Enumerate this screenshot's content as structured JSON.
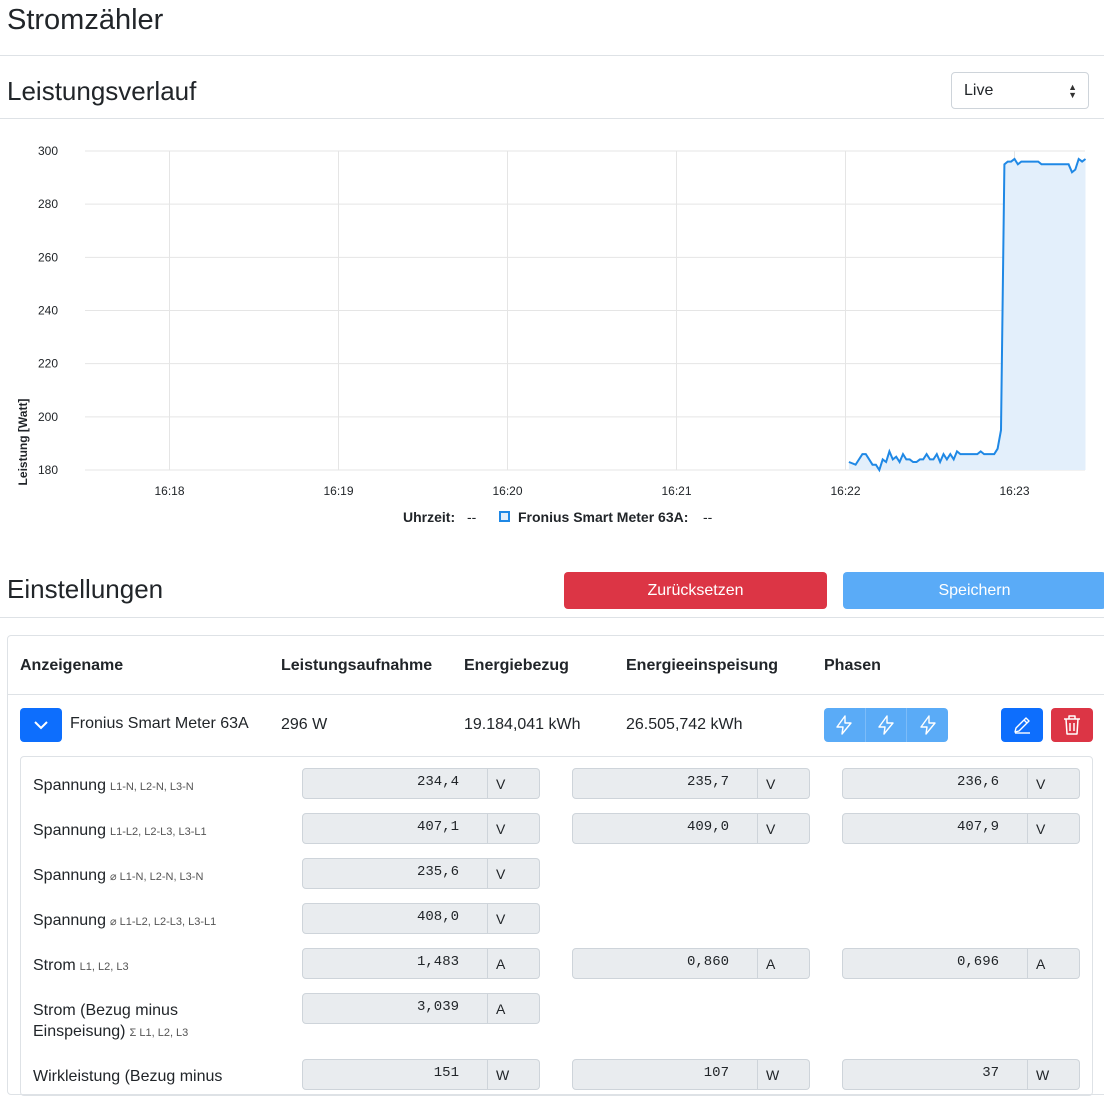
{
  "page": {
    "title": "Stromzähler"
  },
  "chart_section": {
    "title": "Leistungsverlauf",
    "range_select": "Live"
  },
  "chart_data": {
    "type": "area",
    "ylabel": "Leistung [Watt]",
    "ylim": [
      180,
      300
    ],
    "yticks": [
      "180",
      "200",
      "220",
      "240",
      "260",
      "280",
      "300"
    ],
    "xticks": [
      "16:18",
      "16:19",
      "16:20",
      "16:21",
      "16:22",
      "16:23"
    ],
    "grid": true,
    "color": "#1f88e5",
    "series": [
      {
        "name": "Fronius Smart Meter 63A",
        "x_minutes": [
          22.02,
          22.06,
          22.1,
          22.12,
          22.14,
          22.16,
          22.18,
          22.2,
          22.22,
          22.24,
          22.26,
          22.28,
          22.3,
          22.32,
          22.34,
          22.36,
          22.38,
          22.4,
          22.42,
          22.44,
          22.46,
          22.48,
          22.5,
          22.52,
          22.54,
          22.56,
          22.58,
          22.6,
          22.62,
          22.64,
          22.66,
          22.68,
          22.7,
          22.72,
          22.74,
          22.76,
          22.78,
          22.8,
          22.82,
          22.84,
          22.86,
          22.88,
          22.9,
          22.92,
          22.94,
          22.96,
          22.98,
          23.0,
          23.02,
          23.04,
          23.06,
          23.08,
          23.1,
          23.12,
          23.14,
          23.16,
          23.18,
          23.2,
          23.22,
          23.24,
          23.26,
          23.28,
          23.3,
          23.32,
          23.34,
          23.36,
          23.38,
          23.4,
          23.42
        ],
        "values": [
          183,
          182,
          186,
          186,
          184,
          182,
          182,
          180,
          184,
          183,
          187,
          184,
          185,
          183,
          186,
          184,
          184,
          183,
          183,
          184,
          184,
          186,
          184,
          184,
          186,
          183,
          186,
          184,
          186,
          184,
          187,
          186,
          186,
          186,
          186,
          186,
          186,
          187,
          186,
          186,
          186,
          186,
          188,
          195,
          295,
          296,
          296,
          297,
          295,
          296,
          296,
          296,
          296,
          296,
          296,
          295,
          295,
          295,
          295,
          295,
          295,
          295,
          295,
          295,
          292,
          293,
          297,
          296,
          297
        ]
      }
    ]
  },
  "legend": {
    "time_label": "Uhrzeit:",
    "time_value": "--",
    "series_label": "Fronius Smart Meter 63A:",
    "series_value": "--"
  },
  "settings": {
    "title": "Einstellungen",
    "reset_label": "Zurücksetzen",
    "save_label": "Speichern",
    "columns": [
      "Anzeigename",
      "Leistungsaufnahme",
      "Energiebezug",
      "Energieeinspeisung",
      "Phasen"
    ],
    "meter": {
      "name": "Fronius Smart Meter 63A",
      "power": "296 W",
      "energy_in": "19.184,041 kWh",
      "energy_out": "26.505,742 kWh"
    },
    "rows": [
      {
        "label": "Spannung",
        "sub": "L1-N, L2-N, L3-N",
        "values": [
          "234,4",
          "235,7",
          "236,6"
        ],
        "unit": "V"
      },
      {
        "label": "Spannung",
        "sub": "L1-L2, L2-L3, L3-L1",
        "values": [
          "407,1",
          "409,0",
          "407,9"
        ],
        "unit": "V"
      },
      {
        "label": "Spannung",
        "sub": "⌀ L1-N, L2-N, L3-N",
        "values": [
          "235,6"
        ],
        "unit": "V"
      },
      {
        "label": "Spannung",
        "sub": "⌀ L1-L2, L2-L3, L3-L1",
        "values": [
          "408,0"
        ],
        "unit": "V"
      },
      {
        "label": "Strom",
        "sub": "L1, L2, L3",
        "values": [
          "1,483",
          "0,860",
          "0,696"
        ],
        "unit": "A"
      },
      {
        "label": "Strom (Bezug minus",
        "label2": "Einspeisung)",
        "sub": "Σ L1, L2, L3",
        "values": [
          "3,039"
        ],
        "unit": "A"
      },
      {
        "label": "Wirkleistung (Bezug minus",
        "values": [
          "151",
          "107",
          "37"
        ],
        "unit": "W"
      }
    ]
  }
}
